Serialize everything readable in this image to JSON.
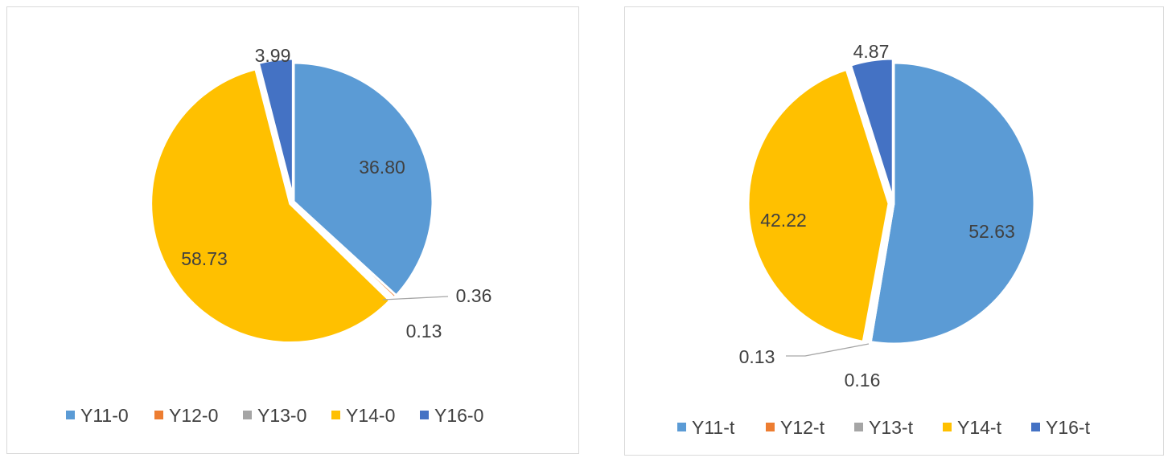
{
  "colors": {
    "Y11": "#5b9bd5",
    "Y12": "#ed7d31",
    "Y13": "#a5a5a5",
    "Y14": "#ffc000",
    "Y16": "#4472c4",
    "border": "#d9d9d9",
    "text": "#404040",
    "leader": "#a6a6a6"
  },
  "chart_data": [
    {
      "type": "pie",
      "title": "",
      "legend_position": "bottom",
      "labels": [
        "Y11-0",
        "Y12-0",
        "Y13-0",
        "Y14-0",
        "Y16-0"
      ],
      "values": [
        36.8,
        0.36,
        0.13,
        58.73,
        3.99
      ],
      "value_labels": [
        "36.80",
        "0.36",
        "0.13",
        "58.73",
        "3.99"
      ]
    },
    {
      "type": "pie",
      "title": "",
      "legend_position": "bottom",
      "labels": [
        "Y11-t",
        "Y12-t",
        "Y13-t",
        "Y14-t",
        "Y16-t"
      ],
      "values": [
        52.63,
        0.16,
        0.13,
        42.22,
        4.87
      ],
      "value_labels": [
        "52.63",
        "0.16",
        "0.13",
        "42.22",
        "4.87"
      ]
    }
  ]
}
